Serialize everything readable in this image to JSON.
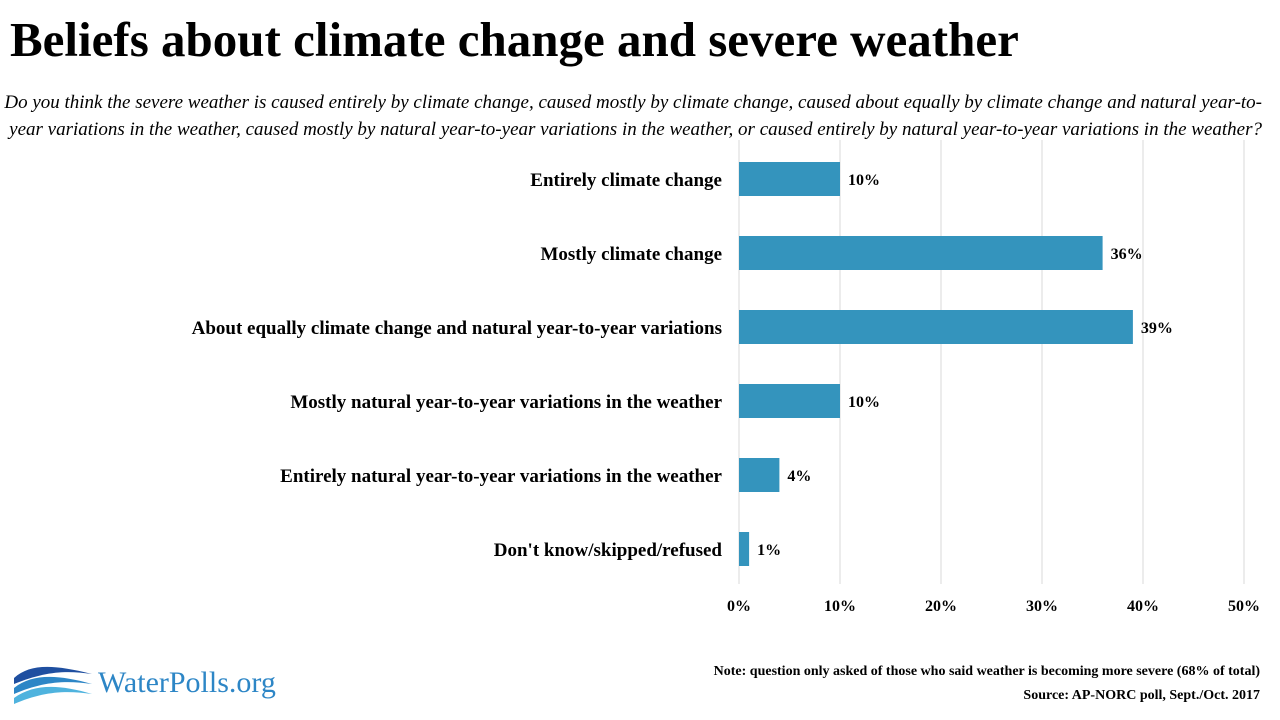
{
  "title": "Beliefs about climate change and severe weather",
  "subtitle": "Do you think the severe weather is caused entirely by climate change, caused mostly by climate change, caused about equally by climate change and natural year-to-year variations in the weather, caused mostly by natural year-to-year variations in the weather, or caused entirely by natural year-to-year variations in the weather?",
  "chart_data": {
    "type": "bar",
    "orientation": "horizontal",
    "categories": [
      "Entirely climate change",
      "Mostly climate change",
      "About equally climate change and natural year-to-year variations",
      "Mostly natural year-to-year variations in the weather",
      "Entirely natural year-to-year variations in the weather",
      "Don't know/skipped/refused"
    ],
    "values": [
      10,
      36,
      39,
      10,
      4,
      1
    ],
    "value_labels": [
      "10%",
      "36%",
      "39%",
      "10%",
      "4%",
      "1%"
    ],
    "xlim": [
      0,
      50
    ],
    "ticks": [
      0,
      10,
      20,
      30,
      40,
      50
    ],
    "tick_labels": [
      "0%",
      "10%",
      "20%",
      "30%",
      "40%",
      "50%"
    ],
    "bar_color": "#3494bd",
    "grid": true,
    "legend": "none"
  },
  "footer": {
    "logo_text": "WaterPolls.org",
    "note": "Note: question only asked of those who said weather is becoming more severe (68% of total)",
    "source": "Source: AP-NORC poll, Sept./Oct. 2017"
  },
  "colors": {
    "bar": "#3494bd",
    "logo": "#2d86c6",
    "grid": "#d9d9d9"
  }
}
